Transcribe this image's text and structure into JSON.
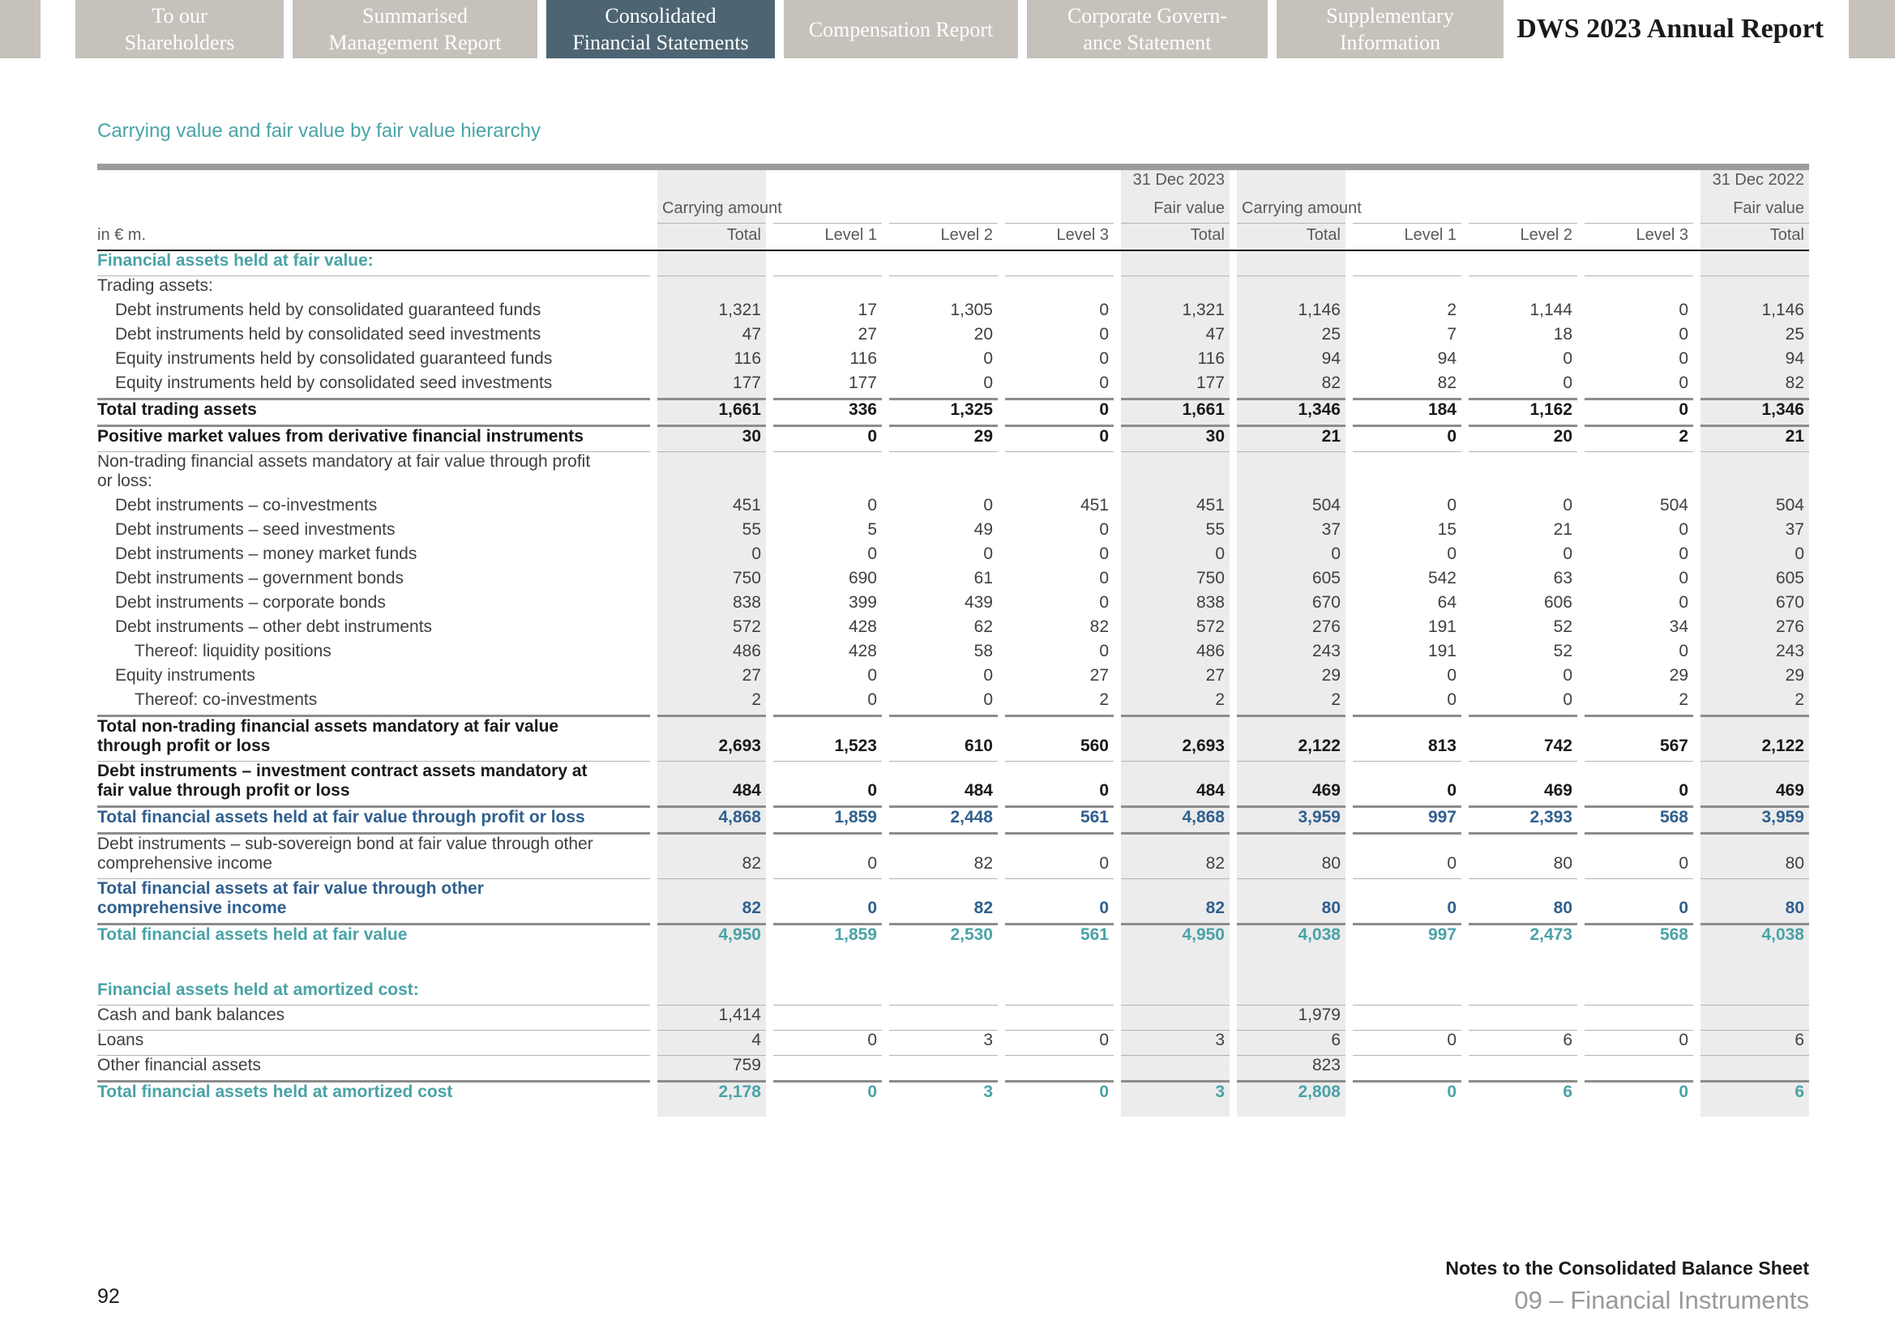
{
  "colors": {
    "teal": "#4AA3A7",
    "blue": "#30608F",
    "tab_active_bg": "#4D6473",
    "tab_inactive_bg": "#C6C2BB",
    "shade": "#ECECEC",
    "line_thin": "#B3B3B3",
    "line_thick": "#8C8C8C",
    "topbar": "#9C9C9C",
    "text_dark": "#1A1A1A",
    "text_body": "#404040",
    "text_muted": "#595959",
    "footer_muted": "#999999"
  },
  "nav": {
    "tabs": [
      {
        "label": "To our\nShareholders",
        "active": false
      },
      {
        "label": "Summarised\nManagement Report",
        "active": false
      },
      {
        "label": "Consolidated\nFinancial Statements",
        "active": true
      },
      {
        "label": "Compensation Report",
        "active": false
      },
      {
        "label": "Corporate Govern-\nance Statement",
        "active": false
      },
      {
        "label": "Supplementary\nInformation",
        "active": false
      }
    ],
    "report_title": "DWS 2023 Annual Report"
  },
  "table": {
    "title": "Carrying value and fair value by fair value hierarchy",
    "unit_label": "in € m.",
    "period_2023": "31 Dec 2023",
    "period_2022": "31 Dec 2022",
    "carrying_label": "Carrying amount",
    "fair_label": "Fair value",
    "col_headers": [
      "Total",
      "Level 1",
      "Level 2",
      "Level 3",
      "Total",
      "Total",
      "Level 1",
      "Level 2",
      "Level 3",
      "Total"
    ],
    "rows": [
      {
        "label": "Financial assets held at fair value:",
        "style": "section-teal",
        "border": "thin"
      },
      {
        "label": "Trading assets:"
      },
      {
        "label": "Debt instruments held by consolidated guaranteed funds",
        "indent": 1,
        "values": [
          "1,321",
          "17",
          "1,305",
          "0",
          "1,321",
          "1,146",
          "2",
          "1,144",
          "0",
          "1,146"
        ]
      },
      {
        "label": "Debt instruments held by consolidated seed investments",
        "indent": 1,
        "values": [
          "47",
          "27",
          "20",
          "0",
          "47",
          "25",
          "7",
          "18",
          "0",
          "25"
        ]
      },
      {
        "label": "Equity instruments held by consolidated guaranteed funds",
        "indent": 1,
        "values": [
          "116",
          "116",
          "0",
          "0",
          "116",
          "94",
          "94",
          "0",
          "0",
          "94"
        ]
      },
      {
        "label": "Equity instruments held by consolidated seed investments",
        "indent": 1,
        "values": [
          "177",
          "177",
          "0",
          "0",
          "177",
          "82",
          "82",
          "0",
          "0",
          "82"
        ]
      },
      {
        "label": "Total trading assets",
        "style": "total-black",
        "border_top": "thick",
        "border": "thick",
        "values": [
          "1,661",
          "336",
          "1,325",
          "0",
          "1,661",
          "1,346",
          "184",
          "1,162",
          "0",
          "1,346"
        ]
      },
      {
        "label": "Positive market values from derivative financial instruments",
        "style": "total-black",
        "border": "thin",
        "values": [
          "30",
          "0",
          "29",
          "0",
          "30",
          "21",
          "0",
          "20",
          "2",
          "21"
        ]
      },
      {
        "label": "Non-trading financial assets mandatory at fair value through profit or loss:"
      },
      {
        "label": "Debt instruments – co-investments",
        "indent": 1,
        "values": [
          "451",
          "0",
          "0",
          "451",
          "451",
          "504",
          "0",
          "0",
          "504",
          "504"
        ]
      },
      {
        "label": "Debt instruments – seed investments",
        "indent": 1,
        "values": [
          "55",
          "5",
          "49",
          "0",
          "55",
          "37",
          "15",
          "21",
          "0",
          "37"
        ]
      },
      {
        "label": "Debt instruments – money market funds",
        "indent": 1,
        "values": [
          "0",
          "0",
          "0",
          "0",
          "0",
          "0",
          "0",
          "0",
          "0",
          "0"
        ]
      },
      {
        "label": "Debt instruments – government bonds",
        "indent": 1,
        "values": [
          "750",
          "690",
          "61",
          "0",
          "750",
          "605",
          "542",
          "63",
          "0",
          "605"
        ]
      },
      {
        "label": "Debt instruments – corporate bonds",
        "indent": 1,
        "values": [
          "838",
          "399",
          "439",
          "0",
          "838",
          "670",
          "64",
          "606",
          "0",
          "670"
        ]
      },
      {
        "label": "Debt instruments – other debt instruments",
        "indent": 1,
        "values": [
          "572",
          "428",
          "62",
          "82",
          "572",
          "276",
          "191",
          "52",
          "34",
          "276"
        ]
      },
      {
        "label": "Thereof: liquidity positions",
        "indent": 2,
        "values": [
          "486",
          "428",
          "58",
          "0",
          "486",
          "243",
          "191",
          "52",
          "0",
          "243"
        ]
      },
      {
        "label": "Equity instruments",
        "indent": 1,
        "values": [
          "27",
          "0",
          "0",
          "27",
          "27",
          "29",
          "0",
          "0",
          "29",
          "29"
        ]
      },
      {
        "label": "Thereof: co-investments",
        "indent": 2,
        "values": [
          "2",
          "0",
          "0",
          "2",
          "2",
          "2",
          "0",
          "0",
          "2",
          "2"
        ]
      },
      {
        "label": "Total non-trading financial assets mandatory at fair value through profit or loss",
        "style": "total-black",
        "border_top": "thick",
        "border": "thin",
        "values": [
          "2,693",
          "1,523",
          "610",
          "560",
          "2,693",
          "2,122",
          "813",
          "742",
          "567",
          "2,122"
        ]
      },
      {
        "label": "Debt instruments – investment contract assets mandatory at fair value through profit or loss",
        "style": "total-black",
        "border": "thick",
        "values": [
          "484",
          "0",
          "484",
          "0",
          "484",
          "469",
          "0",
          "469",
          "0",
          "469"
        ]
      },
      {
        "label": "Total financial assets held at fair value through profit or loss",
        "style": "total-blue",
        "border": "thick",
        "values": [
          "4,868",
          "1,859",
          "2,448",
          "561",
          "4,868",
          "3,959",
          "997",
          "2,393",
          "568",
          "3,959"
        ]
      },
      {
        "label": "Debt instruments – sub-sovereign bond at fair value through other comprehensive income",
        "border": "thin",
        "values": [
          "82",
          "0",
          "82",
          "0",
          "82",
          "80",
          "0",
          "80",
          "0",
          "80"
        ]
      },
      {
        "label": "Total financial assets at fair value through other comprehensive income",
        "style": "total-blue",
        "border": "thick",
        "values": [
          "82",
          "0",
          "82",
          "0",
          "82",
          "80",
          "0",
          "80",
          "0",
          "80"
        ]
      },
      {
        "label": "Total financial assets held at fair value",
        "style": "total-teal",
        "values": [
          "4,950",
          "1,859",
          "2,530",
          "561",
          "4,950",
          "4,038",
          "997",
          "2,473",
          "568",
          "4,038"
        ]
      },
      {
        "style": "spacer"
      },
      {
        "label": "Financial assets held at amortized cost:",
        "style": "section-teal",
        "border": "thin"
      },
      {
        "label": "Cash and bank balances",
        "border": "thin",
        "values": [
          "1,414",
          "",
          "",
          "",
          "",
          "1,979",
          "",
          "",
          "",
          ""
        ]
      },
      {
        "label": "Loans",
        "border": "thin",
        "values": [
          "4",
          "0",
          "3",
          "0",
          "3",
          "6",
          "0",
          "6",
          "0",
          "6"
        ]
      },
      {
        "label": "Other financial assets",
        "border": "thick",
        "values": [
          "759",
          "",
          "",
          "",
          "",
          "823",
          "",
          "",
          "",
          ""
        ]
      },
      {
        "label": "Total financial assets held at amortized cost",
        "style": "total-teal",
        "values": [
          "2,178",
          "0",
          "3",
          "0",
          "3",
          "2,808",
          "0",
          "6",
          "0",
          "6"
        ]
      },
      {
        "style": "spacer-sm"
      }
    ]
  },
  "footer": {
    "page_number": "92",
    "section": "Notes to the Consolidated Balance Sheet",
    "chapter": "09 – Financial Instruments"
  }
}
